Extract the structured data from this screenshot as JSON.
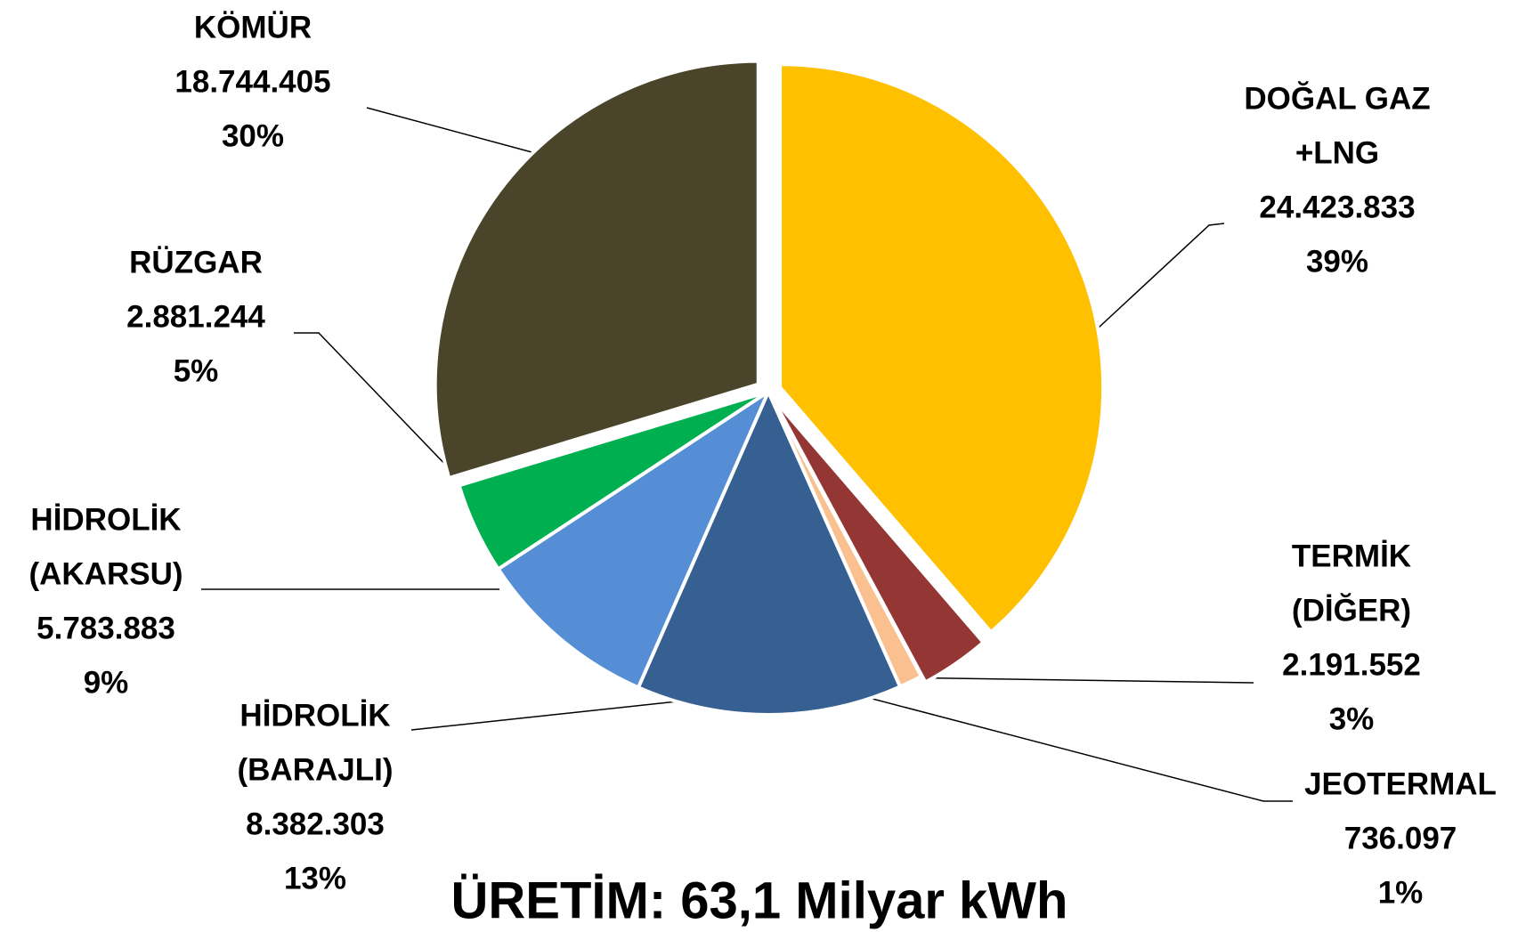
{
  "chart_data": {
    "type": "pie",
    "title": "ÜRETİM: 63,1 Milyar kWh",
    "categories": [
      [
        "DOĞAL GAZ",
        "+LNG"
      ],
      [
        "TERMİK",
        "(DİĞER)"
      ],
      [
        "JEOTERMAL"
      ],
      [
        "HİDROLİK",
        "(BARAJLI)"
      ],
      [
        "HİDROLİK",
        "(AKARSU)"
      ],
      [
        "RÜZGAR"
      ],
      [
        "KÖMÜR"
      ]
    ],
    "values": [
      24423833,
      2191552,
      736097,
      8382303,
      5783883,
      2881244,
      18744405
    ],
    "value_labels": [
      "24.423.833",
      "2.191.552",
      "736.097",
      "8.382.303",
      "5.783.883",
      "2.881.244",
      "18.744.405"
    ],
    "percent_labels": [
      "39%",
      "3%",
      "1%",
      "13%",
      "9%",
      "5%",
      "30%"
    ],
    "colors": [
      "#FFC000",
      "#943634",
      "#FAC090",
      "#376092",
      "#558ED5",
      "#00B050",
      "#4A452A"
    ]
  }
}
